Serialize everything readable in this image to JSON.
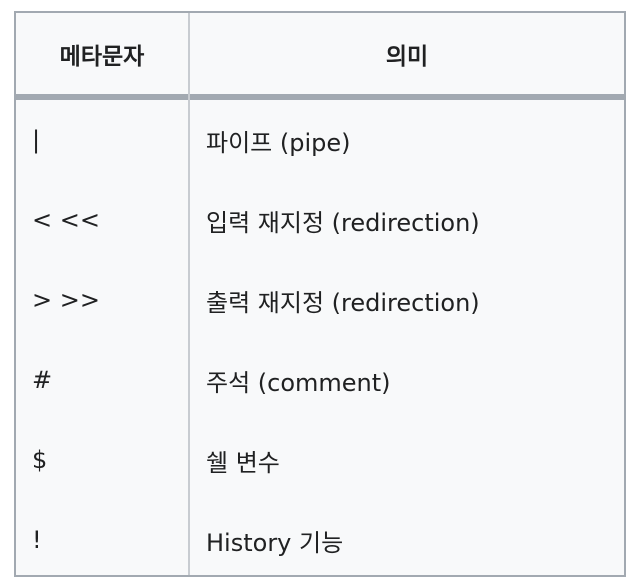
{
  "table": {
    "headers": {
      "metachar": "메타문자",
      "meaning": "의미"
    },
    "rows": [
      {
        "metachar": "|",
        "meaning": "파이프 (pipe)"
      },
      {
        "metachar": "< <<",
        "meaning": "입력 재지정 (redirection)"
      },
      {
        "metachar": "> >>",
        "meaning": "출력 재지정 (redirection)"
      },
      {
        "metachar": "#",
        "meaning": "주석 (comment)"
      },
      {
        "metachar": "$",
        "meaning": "쉘 변수"
      },
      {
        "metachar": "!",
        "meaning": "History 기능"
      }
    ]
  },
  "colors": {
    "border": "#a2a9b1",
    "background": "#f8f9fa",
    "text": "#202122"
  }
}
